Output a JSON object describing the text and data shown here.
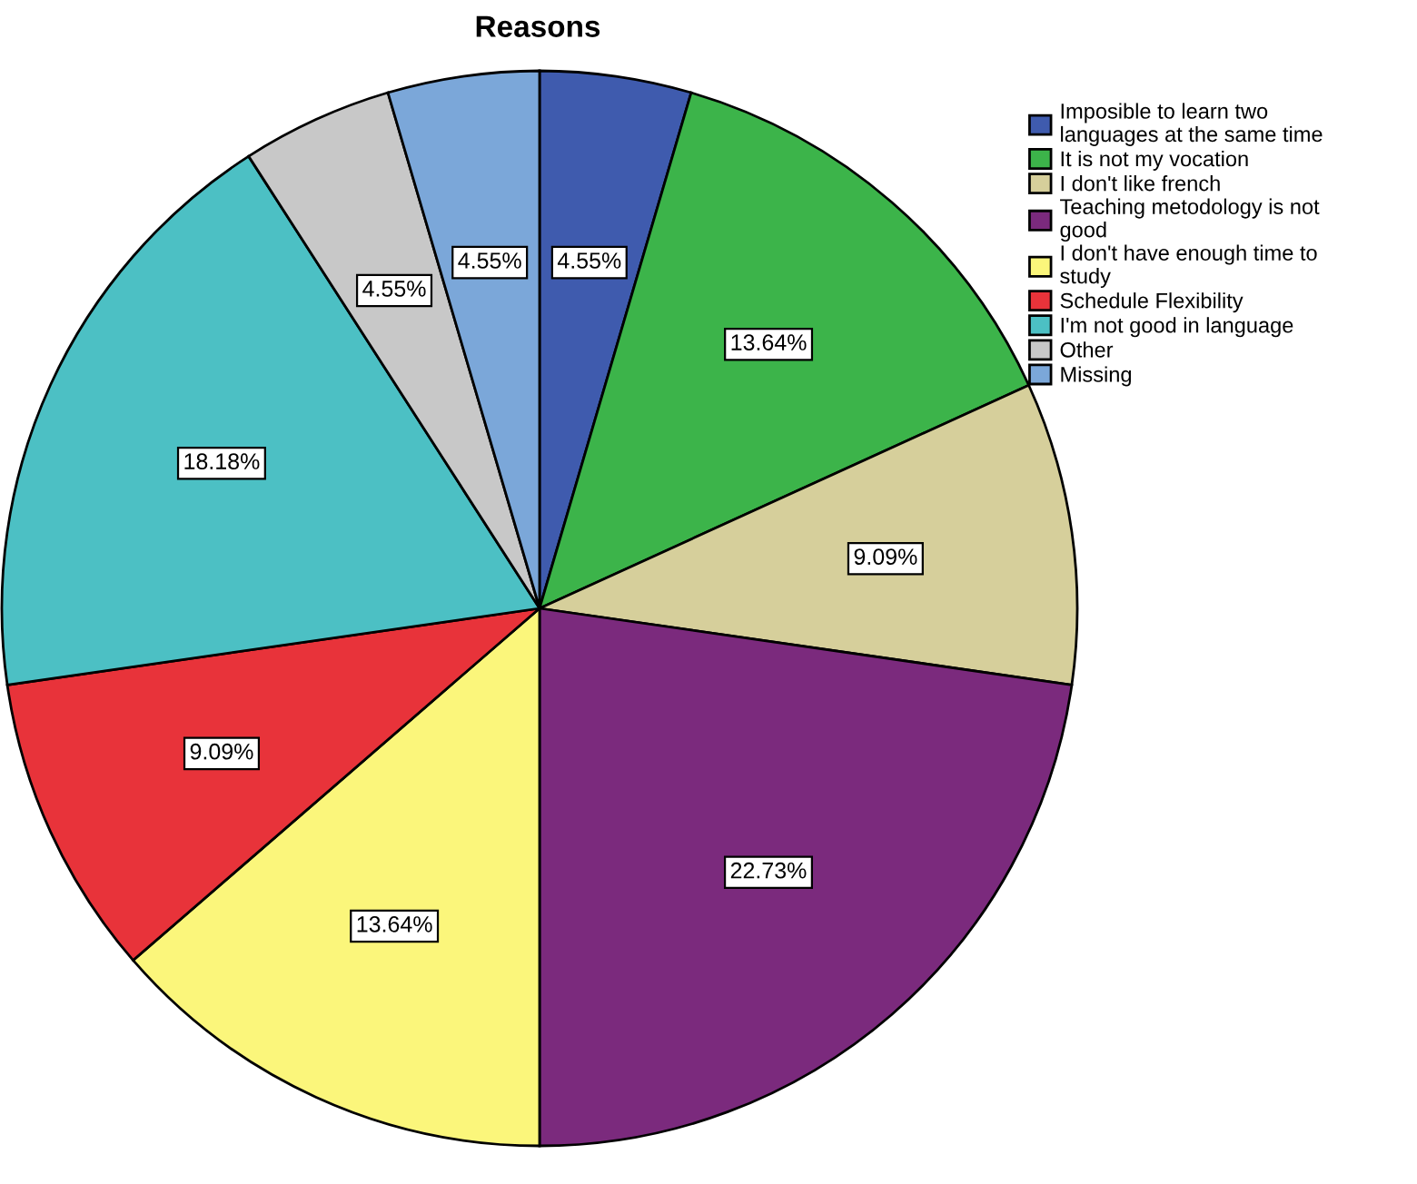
{
  "chart_data": {
    "type": "pie",
    "title": "Reasons",
    "categories": [
      "Imposible to learn two\nlanguages at the same time",
      "It is not my vocation",
      "I don't like french",
      "Teaching metodology is not\ngood",
      "I don't have enough time to\nstudy",
      "Schedule Flexibility",
      "I'm not good in language",
      "Other",
      "Missing"
    ],
    "values": [
      4.55,
      13.64,
      9.09,
      22.73,
      13.64,
      9.09,
      18.18,
      4.55,
      4.55
    ],
    "colors": [
      "#3f5bae",
      "#3cb44a",
      "#d6cf9b",
      "#7b2a7d",
      "#fbf67b",
      "#e8333a",
      "#4cc0c4",
      "#c8c8c8",
      "#7ba7d9"
    ],
    "value_labels": [
      "4.55%",
      "13.64%",
      "9.09%",
      "22.73%",
      "13.64%",
      "9.09%",
      "18.18%",
      "4.55%",
      "4.55%"
    ],
    "legend": "right"
  }
}
